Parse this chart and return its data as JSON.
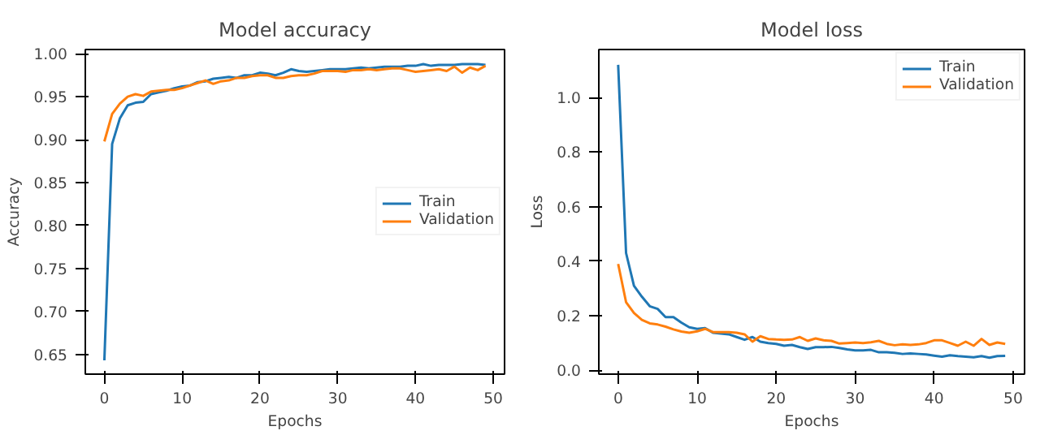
{
  "chart_data": [
    {
      "type": "line",
      "title": "Model accuracy",
      "xlabel": "Epochs",
      "ylabel": "Accuracy",
      "legend": "center right",
      "grid": false,
      "x": [
        0,
        1,
        2,
        3,
        4,
        5,
        6,
        7,
        8,
        9,
        10,
        11,
        12,
        13,
        14,
        15,
        16,
        17,
        18,
        19,
        20,
        21,
        22,
        23,
        24,
        25,
        26,
        27,
        28,
        29,
        30,
        31,
        32,
        33,
        34,
        35,
        36,
        37,
        38,
        39,
        40,
        41,
        42,
        43,
        44,
        45,
        46,
        47,
        48,
        49
      ],
      "xlim": [
        -2.45,
        51.45
      ],
      "xticks": [
        0,
        10,
        20,
        30,
        40,
        50
      ],
      "ylim": [
        0.627,
        1.005
      ],
      "yticks": [
        {
          "value": 0.65,
          "label": "0.65"
        },
        {
          "value": 0.7,
          "label": "0.70"
        },
        {
          "value": 0.75,
          "label": "0.75"
        },
        {
          "value": 0.8,
          "label": "0.80"
        },
        {
          "value": 0.85,
          "label": "0.85"
        },
        {
          "value": 0.9,
          "label": "0.90"
        },
        {
          "value": 0.95,
          "label": "0.95"
        },
        {
          "value": 1.0,
          "label": "1.00"
        }
      ],
      "series": [
        {
          "name": "Train",
          "color": "#1f77b4",
          "values": [
            0.643,
            0.895,
            0.925,
            0.94,
            0.943,
            0.944,
            0.953,
            0.955,
            0.957,
            0.96,
            0.962,
            0.963,
            0.967,
            0.968,
            0.971,
            0.972,
            0.973,
            0.972,
            0.975,
            0.975,
            0.978,
            0.977,
            0.975,
            0.978,
            0.982,
            0.98,
            0.979,
            0.98,
            0.981,
            0.982,
            0.982,
            0.982,
            0.983,
            0.984,
            0.983,
            0.984,
            0.985,
            0.985,
            0.985,
            0.986,
            0.986,
            0.988,
            0.986,
            0.987,
            0.987,
            0.987,
            0.988,
            0.988,
            0.988,
            0.987
          ]
        },
        {
          "name": "Validation",
          "color": "#ff7f0e",
          "values": [
            0.898,
            0.93,
            0.942,
            0.95,
            0.953,
            0.951,
            0.956,
            0.957,
            0.958,
            0.958,
            0.96,
            0.963,
            0.966,
            0.969,
            0.965,
            0.968,
            0.969,
            0.972,
            0.972,
            0.974,
            0.975,
            0.975,
            0.972,
            0.972,
            0.974,
            0.975,
            0.975,
            0.977,
            0.98,
            0.98,
            0.98,
            0.979,
            0.981,
            0.981,
            0.982,
            0.981,
            0.982,
            0.983,
            0.983,
            0.981,
            0.979,
            0.98,
            0.981,
            0.982,
            0.98,
            0.985,
            0.978,
            0.984,
            0.981,
            0.986
          ]
        }
      ]
    },
    {
      "type": "line",
      "title": "Model loss",
      "xlabel": "Epochs",
      "ylabel": "Loss",
      "legend": "top right",
      "grid": false,
      "x": [
        0,
        1,
        2,
        3,
        4,
        5,
        6,
        7,
        8,
        9,
        10,
        11,
        12,
        13,
        14,
        15,
        16,
        17,
        18,
        19,
        20,
        21,
        22,
        23,
        24,
        25,
        26,
        27,
        28,
        29,
        30,
        31,
        32,
        33,
        34,
        35,
        36,
        37,
        38,
        39,
        40,
        41,
        42,
        43,
        44,
        45,
        46,
        47,
        48,
        49
      ],
      "xlim": [
        -2.45,
        51.45
      ],
      "xticks": [
        0,
        10,
        20,
        30,
        40,
        50
      ],
      "ylim": [
        -0.014,
        1.176
      ],
      "yticks": [
        {
          "value": 0,
          "label": "0.0"
        },
        {
          "value": 0.2,
          "label": "0.2"
        },
        {
          "value": 0.4,
          "label": "0.4"
        },
        {
          "value": 0.6,
          "label": "0.6"
        },
        {
          "value": 0.8,
          "label": "0.8"
        },
        {
          "value": 1.0,
          "label": "1.0"
        }
      ],
      "series": [
        {
          "name": "Train",
          "color": "#1f77b4",
          "values": [
            1.12,
            0.43,
            0.31,
            0.27,
            0.235,
            0.225,
            0.195,
            0.195,
            0.175,
            0.158,
            0.152,
            0.155,
            0.138,
            0.135,
            0.132,
            0.122,
            0.112,
            0.122,
            0.105,
            0.1,
            0.097,
            0.09,
            0.093,
            0.085,
            0.078,
            0.085,
            0.085,
            0.086,
            0.082,
            0.077,
            0.073,
            0.073,
            0.075,
            0.066,
            0.066,
            0.064,
            0.06,
            0.062,
            0.06,
            0.058,
            0.054,
            0.05,
            0.055,
            0.052,
            0.05,
            0.048,
            0.052,
            0.046,
            0.052,
            0.053
          ]
        },
        {
          "name": "Validation",
          "color": "#ff7f0e",
          "values": [
            0.39,
            0.25,
            0.21,
            0.185,
            0.172,
            0.168,
            0.16,
            0.15,
            0.142,
            0.138,
            0.143,
            0.152,
            0.14,
            0.14,
            0.14,
            0.138,
            0.132,
            0.105,
            0.125,
            0.115,
            0.113,
            0.112,
            0.113,
            0.122,
            0.108,
            0.117,
            0.11,
            0.108,
            0.098,
            0.1,
            0.102,
            0.1,
            0.103,
            0.108,
            0.097,
            0.092,
            0.095,
            0.093,
            0.095,
            0.1,
            0.11,
            0.11,
            0.1,
            0.09,
            0.105,
            0.09,
            0.115,
            0.093,
            0.102,
            0.097
          ]
        }
      ]
    }
  ]
}
